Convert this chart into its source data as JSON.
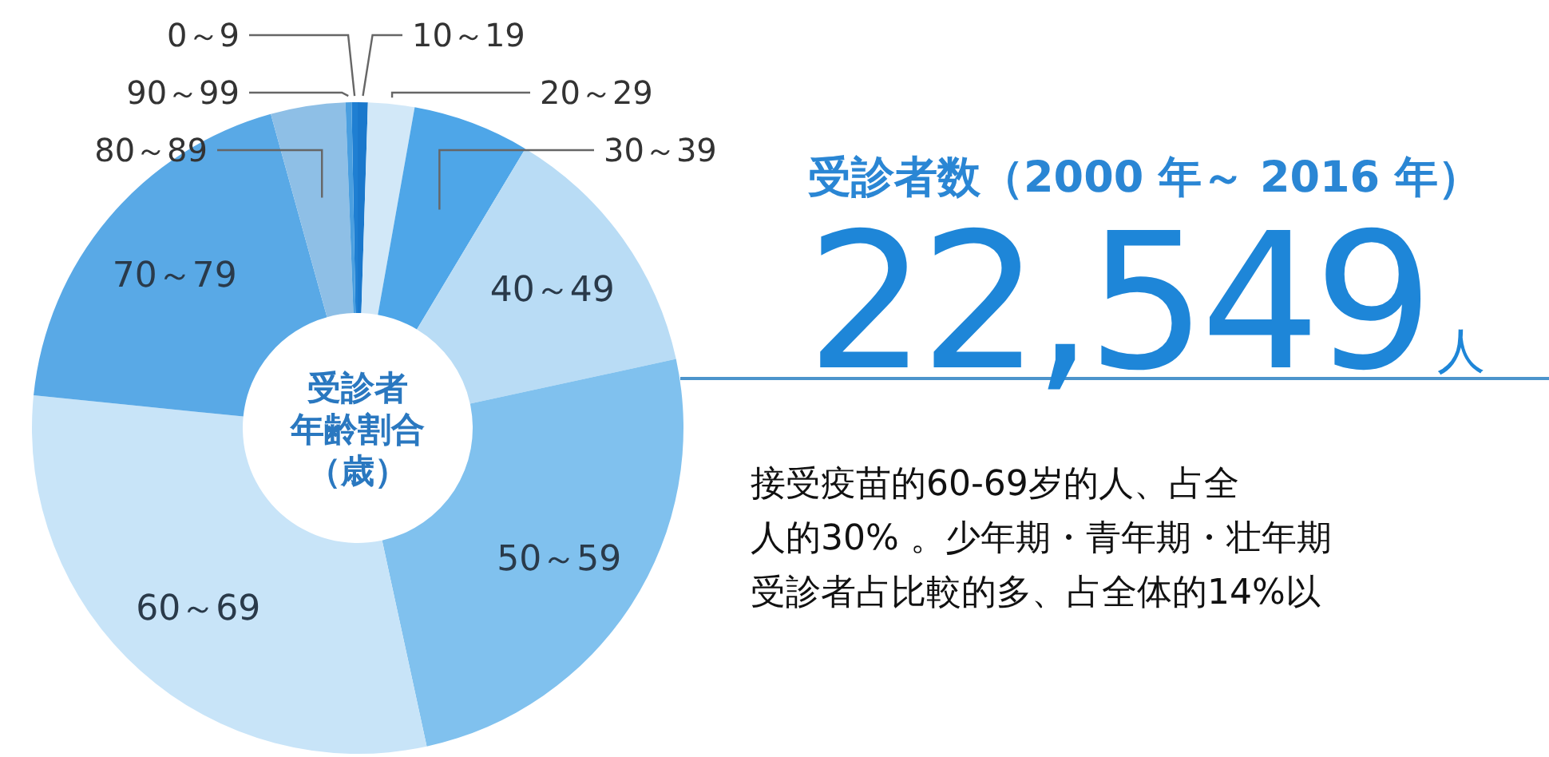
{
  "chart_data": {
    "type": "donut",
    "title": "受診者数（2000 年～ 2016 年）",
    "categories": [
      "0～9",
      "10～19",
      "20～29",
      "30～39",
      "40～49",
      "50～59",
      "60～69",
      "70～79",
      "80～89",
      "90～99"
    ],
    "values": [
      0.3,
      0.5,
      2.3,
      5.8,
      13,
      25,
      30,
      19.1,
      3.7,
      0.3
    ],
    "colors": [
      "#1f7fd2",
      "#1a78cc",
      "#d2e8f8",
      "#4ea6e8",
      "#b9dcf5",
      "#80c1ee",
      "#c8e4f8",
      "#59a9e6",
      "#8ebfe6",
      "#4a9fe0"
    ],
    "annotations": [
      "受診者",
      "年齢割合",
      "（歳）",
      "22,549",
      "人",
      "接受疫苗的60-69岁的人、占全",
      "人的30% 。少年期・青年期・壮年期",
      "受診者占比較的多、占全体的14%以"
    ]
  }
}
